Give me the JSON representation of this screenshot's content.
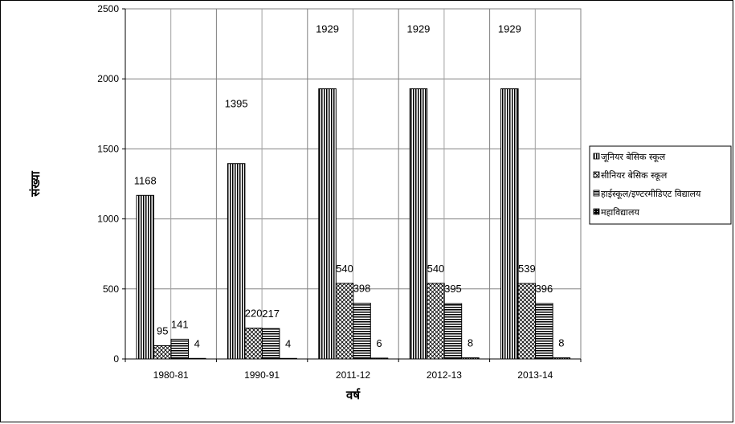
{
  "chart_data": {
    "type": "bar",
    "categories": [
      "1980-81",
      "1990-91",
      "2011-12",
      "2012-13",
      "2013-14"
    ],
    "series": [
      {
        "name": "जूनियर बेसिक स्कूल",
        "values": [
          1168,
          1395,
          1929,
          1929,
          1929
        ]
      },
      {
        "name": "सीनियर बेसिक स्कूल",
        "values": [
          95,
          220,
          540,
          540,
          539
        ]
      },
      {
        "name": "हाईस्कूल/इण्टरमीडिएट विद्यालय",
        "values": [
          141,
          217,
          398,
          395,
          396
        ]
      },
      {
        "name": "महाविद्यालय",
        "values": [
          4,
          4,
          6,
          8,
          8
        ]
      }
    ],
    "xlabel": "वर्ष",
    "ylabel": "संख्या",
    "ylim": [
      0,
      2500
    ],
    "yticks": [
      0,
      500,
      1000,
      1500,
      2000,
      2500
    ],
    "grid": true,
    "legend_position": "right"
  }
}
